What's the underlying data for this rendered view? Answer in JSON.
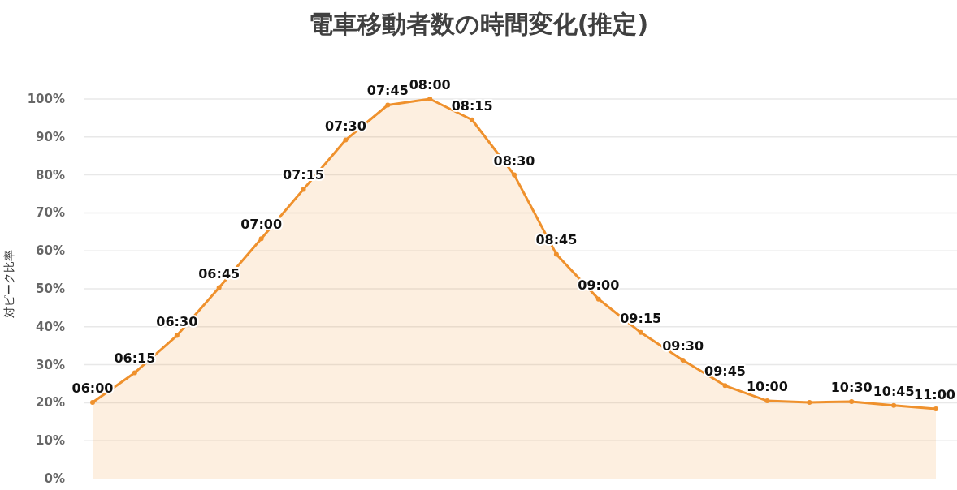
{
  "chart_data": {
    "type": "area",
    "title": "電車移動者数の時間変化(推定)",
    "ylabel": "対ピーク比率",
    "categories": [
      "06:00",
      "06:15",
      "06:30",
      "06:45",
      "07:00",
      "07:15",
      "07:30",
      "07:45",
      "08:00",
      "08:15",
      "08:30",
      "08:45",
      "09:00",
      "09:15",
      "09:30",
      "09:45",
      "10:00",
      null,
      "10:30",
      "10:45",
      "11:00"
    ],
    "series": [
      {
        "color": "#ef912d",
        "values": [
          20.1,
          27.9,
          37.7,
          50.3,
          63.2,
          76.2,
          89.2,
          98.4,
          100,
          94.5,
          80,
          59.1,
          47.3,
          38.5,
          31.2,
          24.5,
          20.5,
          20.1,
          20.3,
          19.3,
          18.4
        ]
      }
    ],
    "ylim": [
      0,
      100
    ],
    "yticks": [
      {
        "value": 0,
        "label": "0%"
      },
      {
        "value": 10,
        "label": "10%"
      },
      {
        "value": 20,
        "label": "20%"
      },
      {
        "value": 30,
        "label": "30%"
      },
      {
        "value": 40,
        "label": "40%"
      },
      {
        "value": 50,
        "label": "50%"
      },
      {
        "value": 60,
        "label": "60%"
      },
      {
        "value": 70,
        "label": "70%"
      },
      {
        "value": 80,
        "label": "80%"
      },
      {
        "value": 90,
        "label": "90%"
      },
      {
        "value": 100,
        "label": "100%"
      }
    ],
    "grid": "y",
    "marker": "circle"
  }
}
